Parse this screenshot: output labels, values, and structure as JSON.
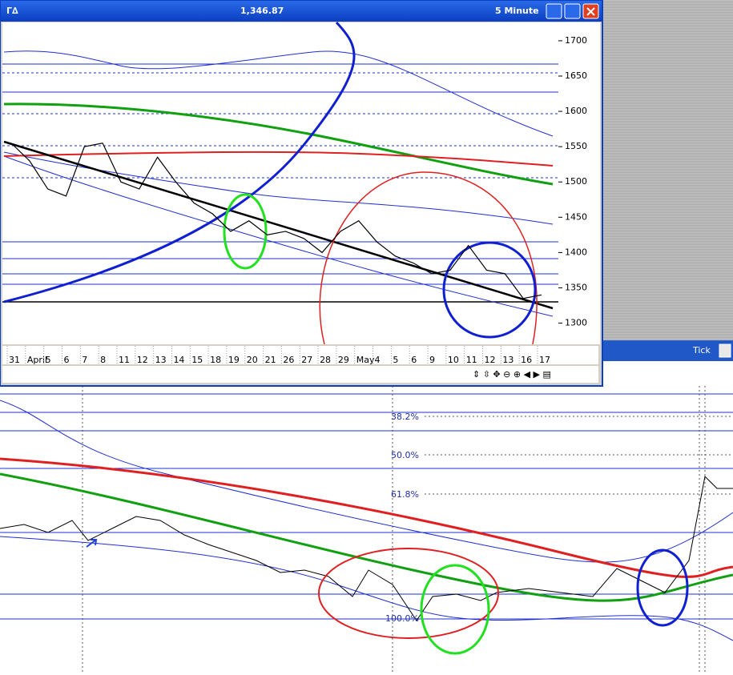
{
  "window": {
    "title": "Γ∆",
    "price": "1,346.87",
    "interval": "5 Minute"
  },
  "chart_data": {
    "type": "line",
    "categories": [
      "31",
      "April",
      "5",
      "6",
      "7",
      "8",
      "11",
      "12",
      "13",
      "14",
      "15",
      "18",
      "19",
      "20",
      "21",
      "26",
      "27",
      "28",
      "29",
      "May",
      "4",
      "5",
      "6",
      "9",
      "10",
      "11",
      "12",
      "13",
      "16",
      "17"
    ],
    "series": [
      {
        "color": "#000000",
        "values": [
          1555,
          1530,
          1490,
          1480,
          1550,
          1555,
          1500,
          1490,
          1535,
          1500,
          1470,
          1455,
          1430,
          1445,
          1425,
          1430,
          1420,
          1400,
          1430,
          1445,
          1415,
          1395,
          1385,
          1370,
          1375,
          1410,
          1375,
          1370,
          1335,
          1340
        ]
      }
    ],
    "ylim": [
      1270,
      1726
    ],
    "yticks": [
      1300,
      1350,
      1400,
      1450,
      1500,
      1550,
      1600,
      1650,
      1700
    ]
  },
  "lower_panel": {
    "title": "Tick",
    "fib_labels": [
      "38.2%",
      "50.0%",
      "61.8%",
      "100.0%"
    ]
  }
}
